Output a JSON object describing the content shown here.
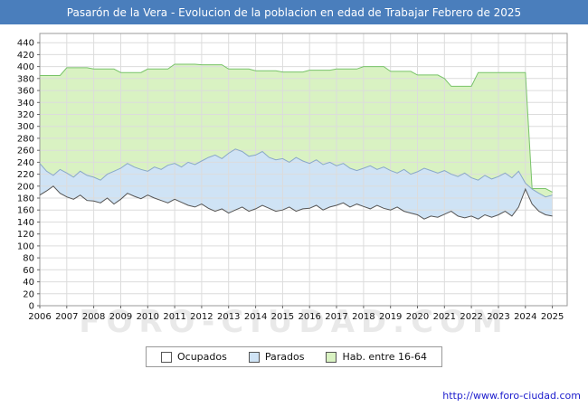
{
  "title_bar": {
    "title": "Pasarón de la Vera - Evolucion de la poblacion en edad de Trabajar Febrero de 2025",
    "bg_color": "#4a7ebc"
  },
  "watermark": "FORO-CIUDAD.COM",
  "footer": {
    "url": "http://www.foro-ciudad.com"
  },
  "chart_data": {
    "type": "area",
    "title": "Pasarón de la Vera - Evolucion de la poblacion en edad de Trabajar Febrero de 2025",
    "xlabel": "",
    "ylabel": "",
    "grid": true,
    "legend_position": "bottom",
    "xlim": [
      2006,
      2025.55
    ],
    "ylim": [
      0,
      440
    ],
    "x_start": 2006,
    "x_step": 0.25,
    "y_ticks": [
      0,
      20,
      40,
      60,
      80,
      100,
      120,
      140,
      160,
      180,
      200,
      220,
      240,
      260,
      280,
      300,
      320,
      340,
      360,
      380,
      400,
      420,
      440
    ],
    "x_ticks": [
      2006,
      2007,
      2008,
      2009,
      2010,
      2011,
      2012,
      2013,
      2014,
      2015,
      2016,
      2017,
      2018,
      2019,
      2020,
      2021,
      2022,
      2023,
      2024,
      2025
    ],
    "legend": [
      {
        "label": "Ocupados",
        "fill": "#ffffff",
        "stroke": "#555555"
      },
      {
        "label": "Parados",
        "fill": "#cfe3f5",
        "stroke": "#8aa8c8"
      },
      {
        "label": "Hab. entre 16-64",
        "fill": "#d9f2c2",
        "stroke": "#79c36a"
      }
    ],
    "series": [
      {
        "name": "Hab. entre 16-64",
        "fill": "#d9f2c2",
        "stroke": "#79c36a",
        "values": [
          385,
          385,
          385,
          385,
          398,
          398,
          398,
          398,
          396,
          396,
          396,
          396,
          390,
          390,
          390,
          390,
          396,
          396,
          396,
          396,
          404,
          404,
          404,
          404,
          403,
          403,
          403,
          403,
          396,
          396,
          396,
          396,
          393,
          393,
          393,
          393,
          391,
          391,
          391,
          391,
          394,
          394,
          394,
          394,
          396,
          396,
          396,
          396,
          400,
          400,
          400,
          400,
          392,
          392,
          392,
          392,
          386,
          386,
          386,
          386,
          380,
          367,
          367,
          367,
          367,
          390,
          390,
          390,
          390,
          390,
          390,
          390,
          390,
          196,
          196,
          196,
          190
        ]
      },
      {
        "name": "Parados",
        "fill": "#cfe3f5",
        "stroke": "#8aa8c8",
        "values": [
          238,
          225,
          218,
          228,
          222,
          215,
          225,
          218,
          215,
          210,
          220,
          225,
          230,
          238,
          232,
          228,
          225,
          232,
          228,
          235,
          238,
          232,
          240,
          236,
          242,
          248,
          252,
          246,
          255,
          262,
          258,
          250,
          252,
          258,
          248,
          244,
          246,
          240,
          248,
          242,
          238,
          244,
          236,
          240,
          234,
          238,
          230,
          226,
          230,
          234,
          228,
          232,
          226,
          222,
          228,
          220,
          224,
          230,
          226,
          222,
          226,
          220,
          216,
          222,
          214,
          210,
          218,
          212,
          216,
          222,
          214,
          225,
          205,
          195,
          188,
          182,
          185
        ]
      },
      {
        "name": "Ocupados",
        "fill": "#ffffff",
        "stroke": "#555555",
        "values": [
          185,
          192,
          200,
          188,
          182,
          178,
          185,
          176,
          175,
          172,
          180,
          170,
          178,
          188,
          183,
          179,
          185,
          180,
          176,
          172,
          178,
          173,
          168,
          165,
          170,
          163,
          158,
          162,
          155,
          160,
          165,
          158,
          162,
          168,
          163,
          158,
          160,
          165,
          158,
          162,
          163,
          168,
          160,
          165,
          168,
          172,
          165,
          170,
          166,
          162,
          168,
          163,
          160,
          165,
          158,
          155,
          152,
          145,
          150,
          148,
          153,
          158,
          150,
          147,
          150,
          145,
          152,
          148,
          152,
          158,
          150,
          165,
          195,
          170,
          158,
          152,
          150
        ]
      }
    ]
  }
}
